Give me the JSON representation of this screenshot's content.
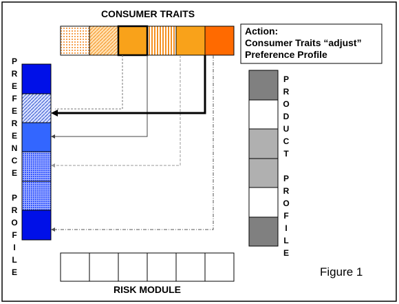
{
  "title": "CONSUMER TRAITS",
  "action": {
    "label": "Action:",
    "lines": [
      "Consumer Traits “adjust”",
      "Preference Profile"
    ]
  },
  "preference_label": "PREFERENCE PROFILE",
  "product_label": "PRODUCT PROFILE",
  "risk_label": "RISK MODULE",
  "figure_label": "Figure 1"
}
